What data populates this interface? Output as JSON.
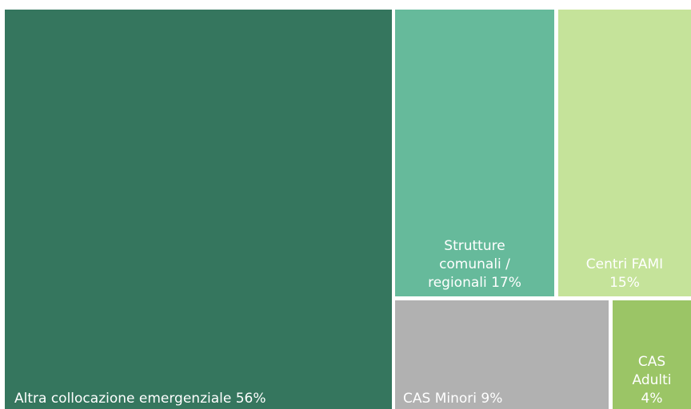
{
  "chart_data": {
    "type": "treemap",
    "title": "",
    "items": [
      {
        "name": "Altra collocazione emergenziale",
        "value": 56,
        "label_lines": [
          "Altra collocazione emergenziale 56%"
        ],
        "color": "#35765e"
      },
      {
        "name": "Strutture comunali / regionali",
        "value": 17,
        "label_lines": [
          "Strutture",
          "comunali /",
          "regionali 17%"
        ],
        "color": "#66ba9b"
      },
      {
        "name": "Centri FAMI",
        "value": 15,
        "label_lines": [
          "Centri FAMI",
          "15%"
        ],
        "color": "#c5e39a"
      },
      {
        "name": "CAS Minori",
        "value": 9,
        "label_lines": [
          "CAS Minori 9%"
        ],
        "color": "#b1b1b1"
      },
      {
        "name": "CAS Adulti",
        "value": 4,
        "label_lines": [
          "CAS",
          "Adulti",
          "4%"
        ],
        "color": "#9bc566"
      }
    ]
  }
}
